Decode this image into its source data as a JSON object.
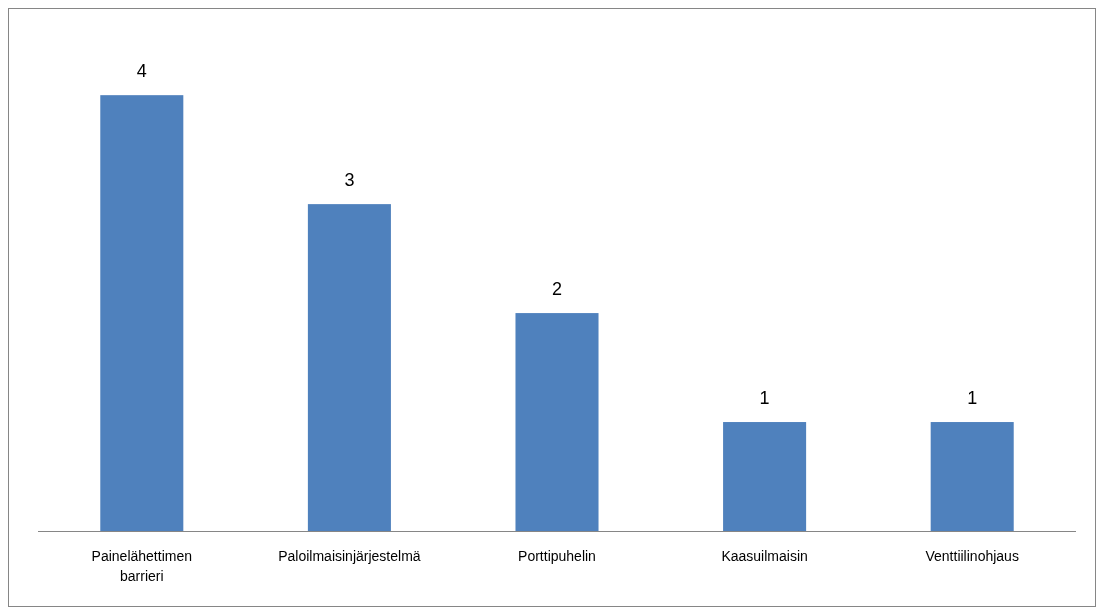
{
  "chart_data": {
    "type": "bar",
    "categories": [
      "Painelähettimen barrieri",
      "Paloilmaisinjärjestelmä",
      "Porttipuhelin",
      "Kaasuilmaisin",
      "Venttiilinohjaus"
    ],
    "values": [
      4,
      3,
      2,
      1,
      1
    ],
    "color": "#4f81bd",
    "data_labels": true
  }
}
